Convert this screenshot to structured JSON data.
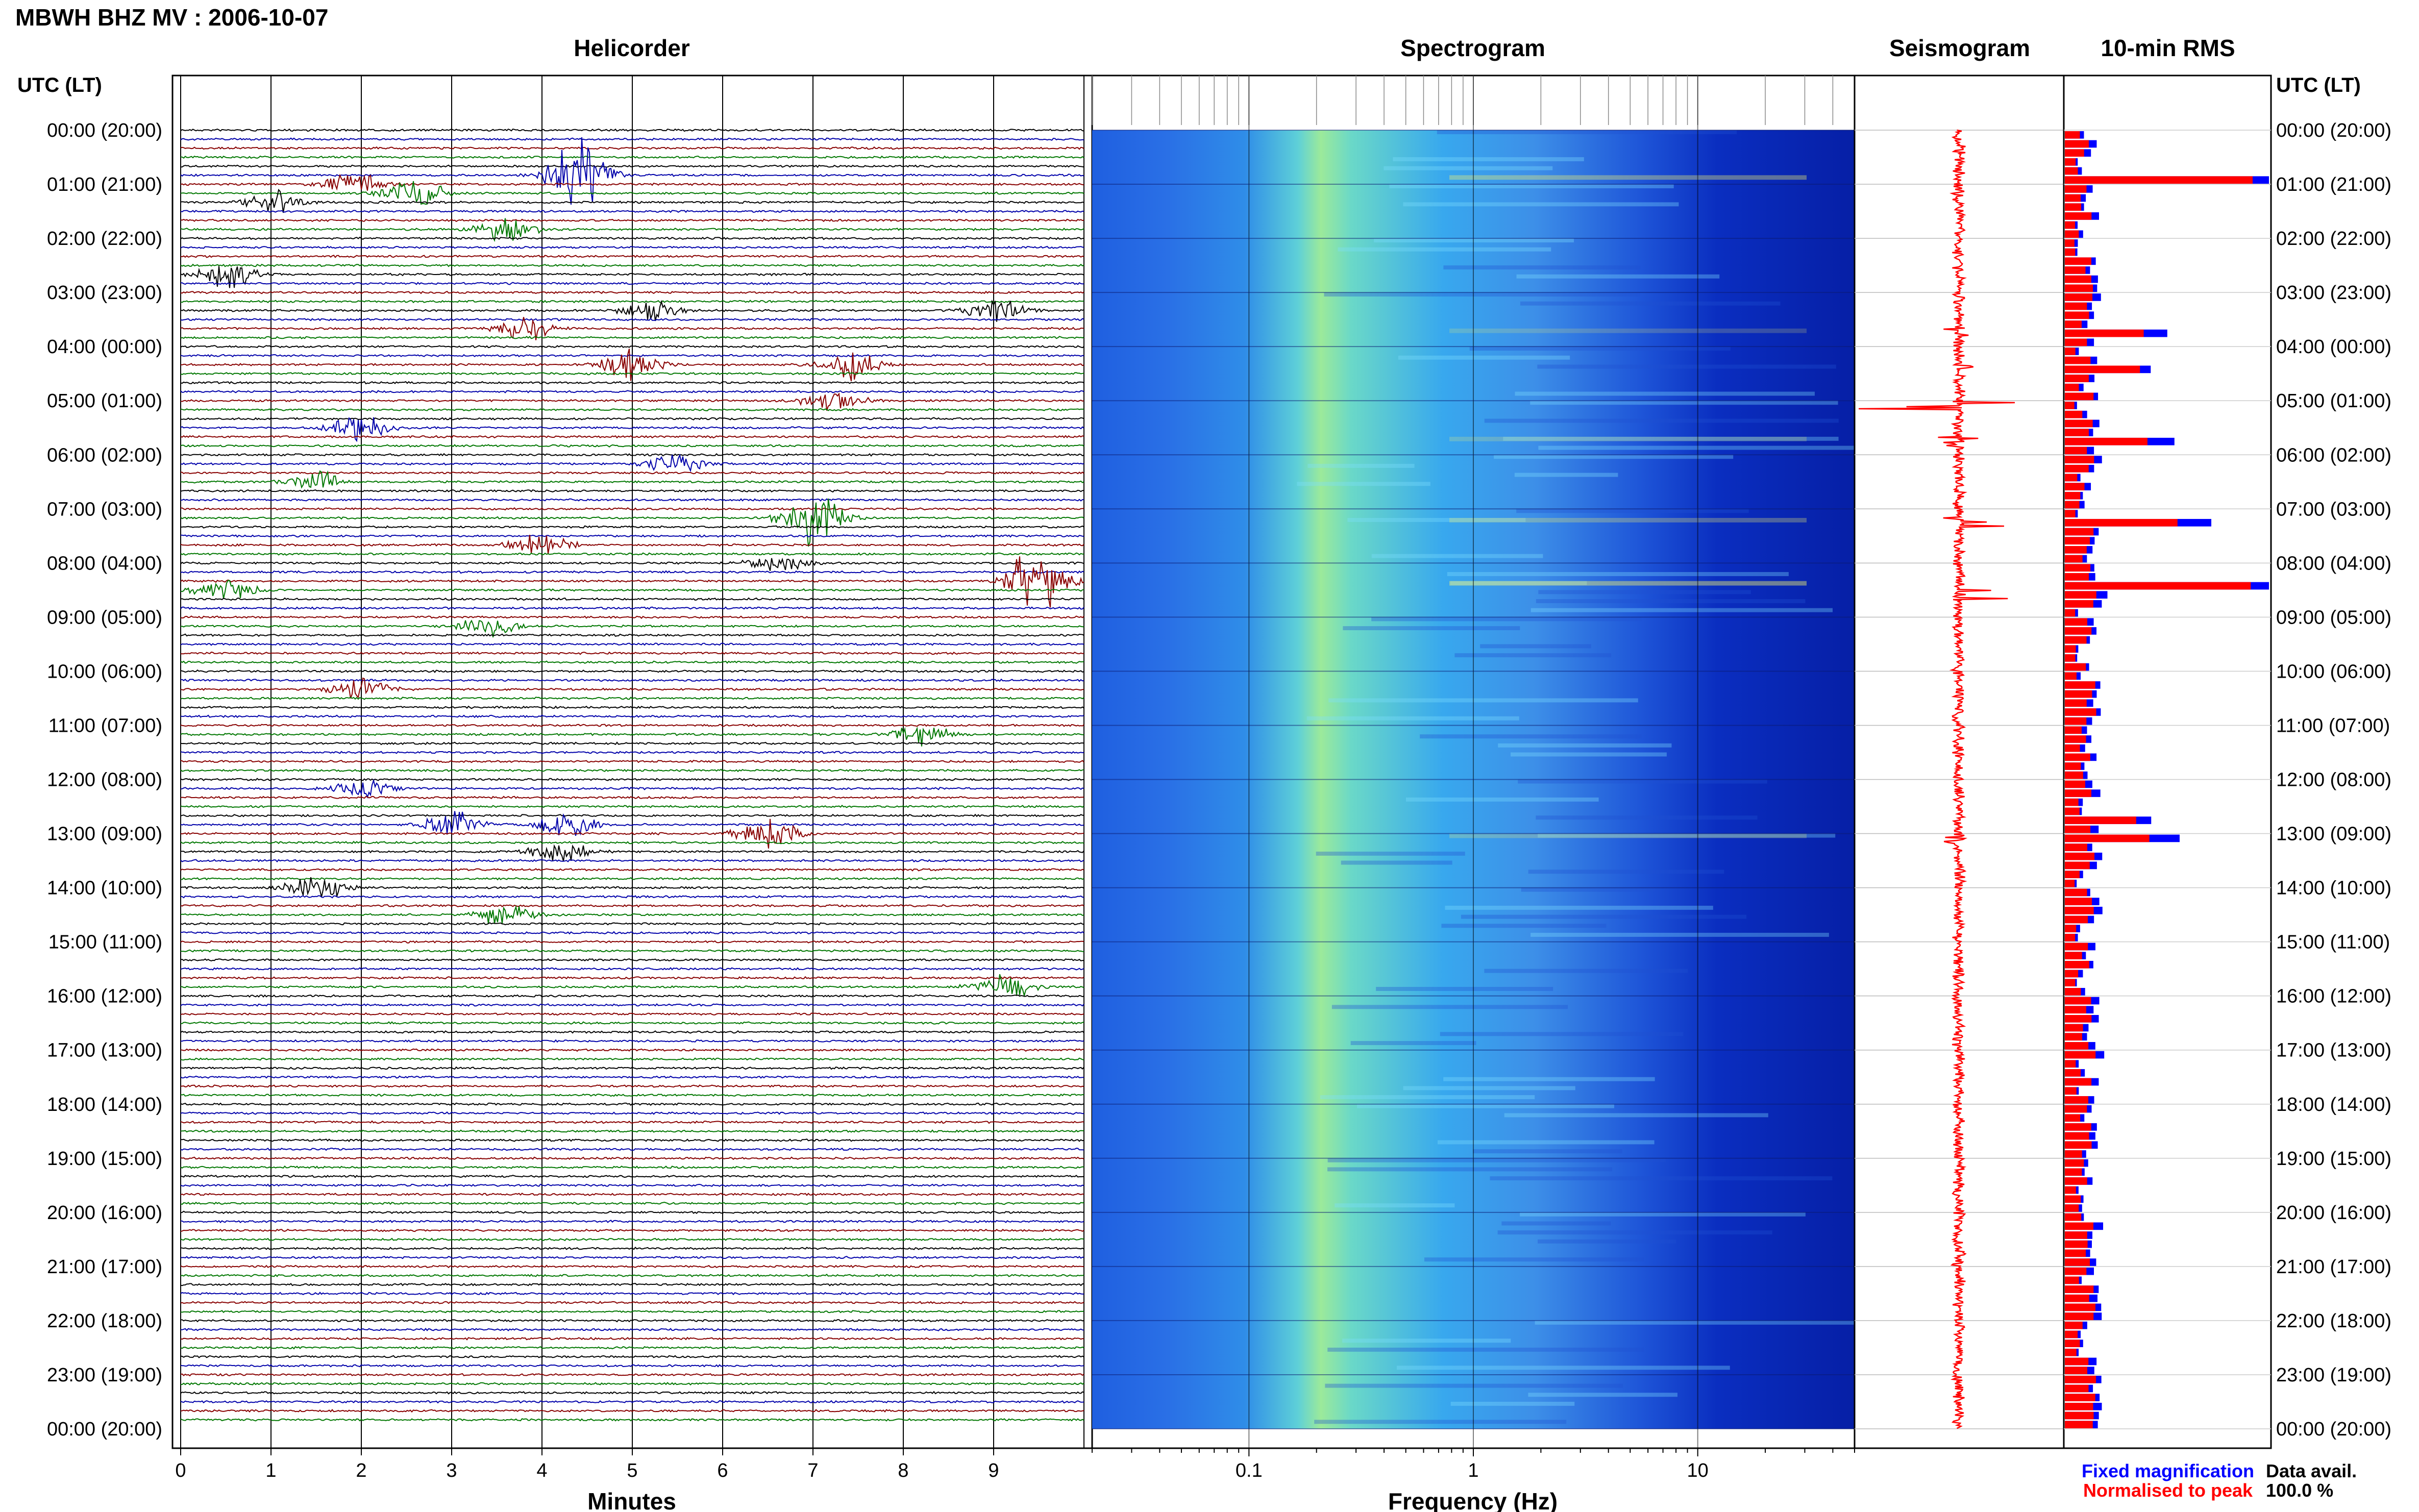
{
  "header": {
    "title": "MBWH BHZ MV : 2006-10-07",
    "left_axis_title": "UTC (LT)",
    "right_axis_title": "UTC (LT)"
  },
  "panels": {
    "helicorder": "Helicorder",
    "spectrogram": "Spectrogram",
    "seismogram": "Seismogram",
    "rms": "10-min RMS"
  },
  "legend": {
    "fixed": "Fixed magnification",
    "normalised": "Normalised to peak",
    "data_avail_label": "Data avail.",
    "data_avail_value": "100.0 %"
  },
  "colors": {
    "trace_cycle": [
      "#000000",
      "#0000aa",
      "#880000",
      "#007700"
    ],
    "rms_fixed": "#0000ff",
    "rms_normalised": "#ff0000",
    "seismogram": "#ff0000",
    "legend_fixed": "#0000ff",
    "legend_normalised": "#ff0000"
  },
  "time_labels": [
    "00:00 (20:00)",
    "01:00 (21:00)",
    "02:00 (22:00)",
    "03:00 (23:00)",
    "04:00 (00:00)",
    "05:00 (01:00)",
    "06:00 (02:00)",
    "07:00 (03:00)",
    "08:00 (04:00)",
    "09:00 (05:00)",
    "10:00 (06:00)",
    "11:00 (07:00)",
    "12:00 (08:00)",
    "13:00 (09:00)",
    "14:00 (10:00)",
    "15:00 (11:00)",
    "16:00 (12:00)",
    "17:00 (13:00)",
    "18:00 (14:00)",
    "19:00 (15:00)",
    "20:00 (16:00)",
    "21:00 (17:00)",
    "22:00 (18:00)",
    "23:00 (19:00)",
    "00:00 (20:00)"
  ],
  "chart_data": [
    {
      "type": "line",
      "title": "Helicorder",
      "xlabel": "Minutes",
      "xlim": [
        0,
        10
      ],
      "x_ticks": [
        "0",
        "1",
        "2",
        "3",
        "4",
        "5",
        "6",
        "7",
        "8",
        "9"
      ],
      "rows": 144,
      "minutes_per_row": 10,
      "events": [
        {
          "row": 5,
          "minute": 4.4,
          "amp": 1.0
        },
        {
          "row": 7,
          "minute": 2.6,
          "amp": 0.4
        },
        {
          "row": 6,
          "minute": 1.9,
          "amp": 0.3
        },
        {
          "row": 8,
          "minute": 1.0,
          "amp": 0.3
        },
        {
          "row": 11,
          "minute": 3.6,
          "amp": 0.3
        },
        {
          "row": 16,
          "minute": 0.5,
          "amp": 0.35
        },
        {
          "row": 20,
          "minute": 5.2,
          "amp": 0.25
        },
        {
          "row": 20,
          "minute": 9.0,
          "amp": 0.3
        },
        {
          "row": 22,
          "minute": 3.8,
          "amp": 0.3
        },
        {
          "row": 26,
          "minute": 5.0,
          "amp": 0.4
        },
        {
          "row": 26,
          "minute": 7.4,
          "amp": 0.4
        },
        {
          "row": 30,
          "minute": 7.2,
          "amp": 0.3
        },
        {
          "row": 33,
          "minute": 2.0,
          "amp": 0.35
        },
        {
          "row": 37,
          "minute": 5.5,
          "amp": 0.25
        },
        {
          "row": 39,
          "minute": 1.5,
          "amp": 0.25
        },
        {
          "row": 43,
          "minute": 7.0,
          "amp": 0.7
        },
        {
          "row": 46,
          "minute": 4.0,
          "amp": 0.3
        },
        {
          "row": 48,
          "minute": 6.6,
          "amp": 0.25
        },
        {
          "row": 50,
          "minute": 9.5,
          "amp": 1.0
        },
        {
          "row": 51,
          "minute": 0.5,
          "amp": 0.35
        },
        {
          "row": 55,
          "minute": 3.4,
          "amp": 0.25
        },
        {
          "row": 62,
          "minute": 2.0,
          "amp": 0.3
        },
        {
          "row": 67,
          "minute": 8.2,
          "amp": 0.3
        },
        {
          "row": 73,
          "minute": 2.0,
          "amp": 0.25
        },
        {
          "row": 77,
          "minute": 3.0,
          "amp": 0.35
        },
        {
          "row": 77,
          "minute": 4.3,
          "amp": 0.3
        },
        {
          "row": 78,
          "minute": 6.5,
          "amp": 0.4
        },
        {
          "row": 80,
          "minute": 4.2,
          "amp": 0.3
        },
        {
          "row": 84,
          "minute": 1.5,
          "amp": 0.35
        },
        {
          "row": 87,
          "minute": 3.6,
          "amp": 0.3
        },
        {
          "row": 95,
          "minute": 9.1,
          "amp": 0.35
        }
      ]
    },
    {
      "type": "heatmap",
      "title": "Spectrogram",
      "xlabel": "Frequency (Hz)",
      "x_scale": "log",
      "xlim": [
        0.02,
        50
      ],
      "x_ticks": [
        "0.1",
        "1",
        "10"
      ]
    },
    {
      "type": "line",
      "title": "Seismogram"
    },
    {
      "type": "bar",
      "title": "10-min RMS",
      "series": [
        {
          "name": "Fixed magnification"
        },
        {
          "name": "Normalised to peak"
        }
      ],
      "peak_rows": [
        {
          "row": 5,
          "value": 1.0
        },
        {
          "row": 50,
          "value": 0.99
        },
        {
          "row": 43,
          "value": 0.6
        },
        {
          "row": 78,
          "value": 0.45
        },
        {
          "row": 76,
          "value": 0.38
        },
        {
          "row": 22,
          "value": 0.42
        },
        {
          "row": 34,
          "value": 0.44
        },
        {
          "row": 26,
          "value": 0.4
        }
      ]
    }
  ]
}
